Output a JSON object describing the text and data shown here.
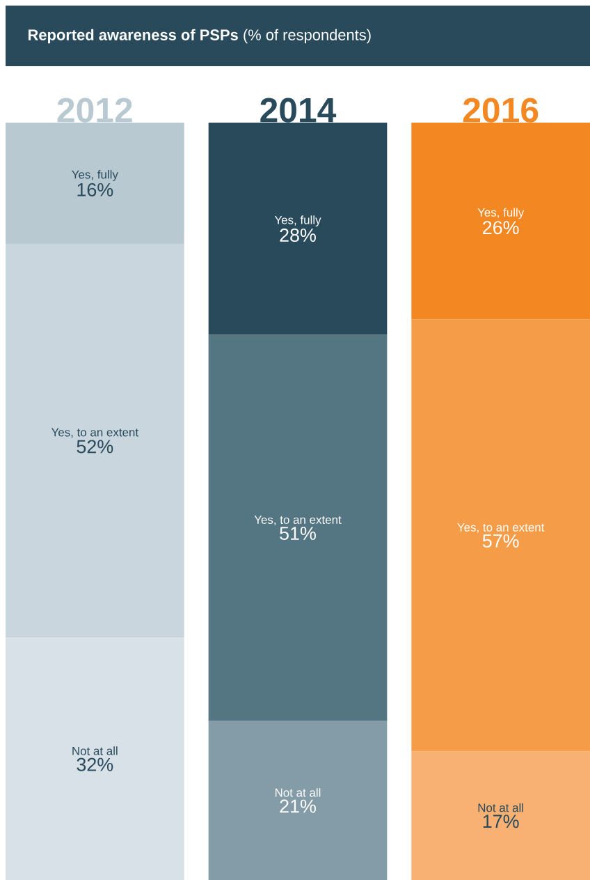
{
  "chart_data": {
    "type": "bar",
    "stacked": true,
    "title": "**Reported awareness of PSPs**  (% of respondents)",
    "categories": [
      "2012",
      "2014",
      "2016"
    ],
    "ylim": [
      0,
      100
    ],
    "series": [
      {
        "name": "Not at all",
        "colors": [
          "#d9e1e8",
          "#839ca8",
          "#f8b073"
        ],
        "values": [
          32,
          21,
          17
        ],
        "value_labels": [
          "32%",
          "21%",
          "17%"
        ]
      },
      {
        "name": "Yes, to an extent",
        "colors": [
          "#c9d6de",
          "#547582",
          "#f59c49"
        ],
        "values": [
          52,
          51,
          57
        ],
        "value_labels": [
          "52%",
          "51%",
          "57%"
        ]
      },
      {
        "name": "Yes, fully",
        "colors": [
          "#b9c9d2",
          "#284a5b",
          "#f38721"
        ],
        "values": [
          16,
          28,
          26
        ],
        "value_labels": [
          "16%",
          "28%",
          "26%"
        ]
      }
    ]
  }
}
